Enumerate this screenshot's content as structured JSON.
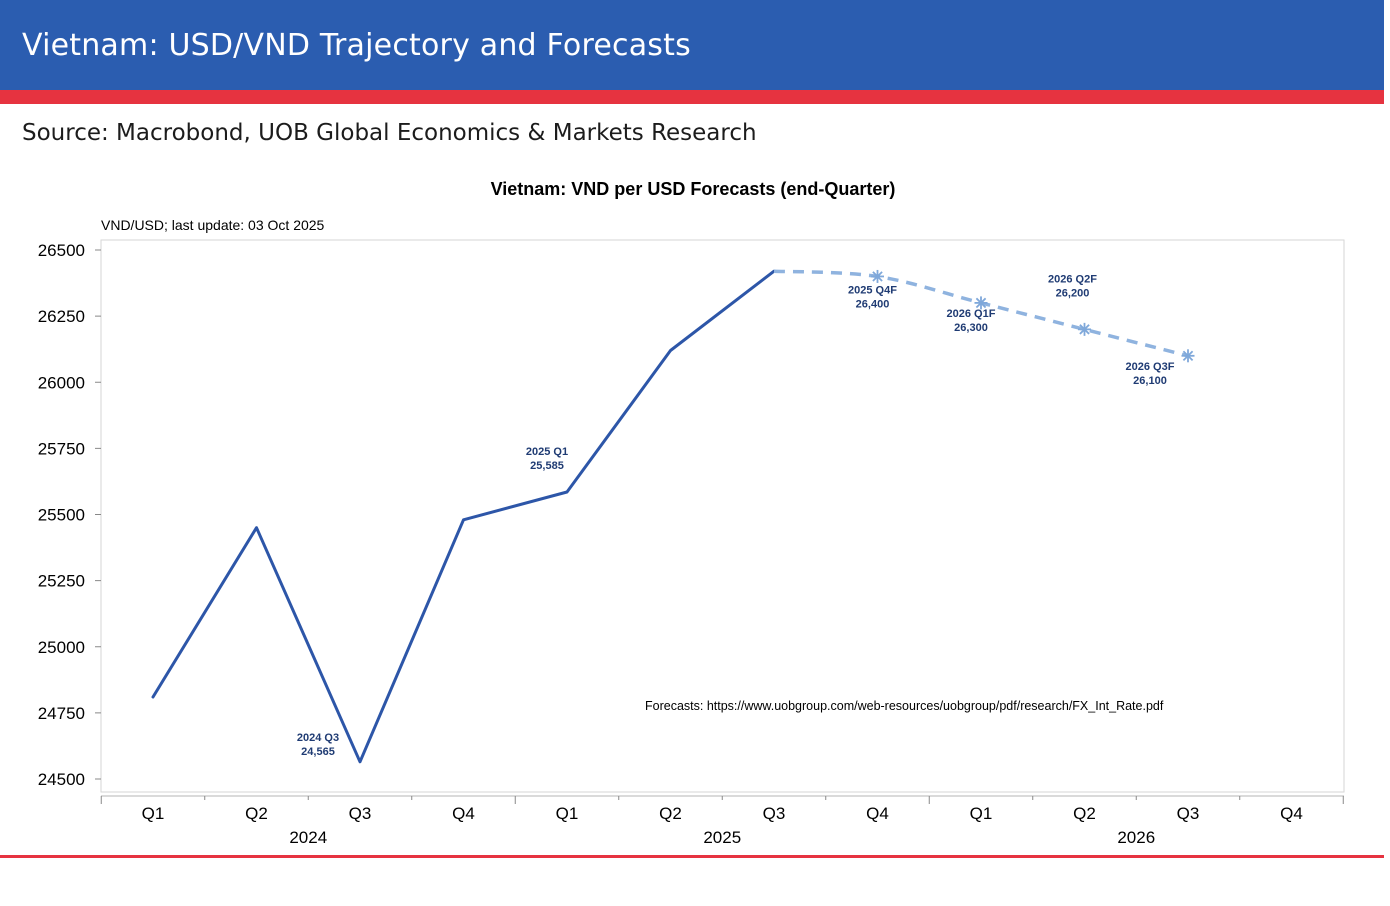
{
  "header": {
    "title": "Vietnam: USD/VND Trajectory and Forecasts",
    "source": "Source: Macrobond, UOB Global Economics & Markets Research"
  },
  "colors": {
    "banner": "#2b5db0",
    "accent_red": "#e63340",
    "actual_line": "#2d56a8",
    "forecast_line": "#8fb3df"
  },
  "chart_data": {
    "type": "line",
    "title": "Vietnam: VND per USD Forecasts (end-Quarter)",
    "unit_note": "VND/USD; last update: 03 Oct 2025",
    "footnote": "Forecasts: https://www.uobgroup.com/web-resources/uobgroup/pdf/research/FX_Int_Rate.pdf",
    "ylim": [
      24500,
      26500
    ],
    "yticks": [
      "26500",
      "26250",
      "26000",
      "25750",
      "25500",
      "25250",
      "25000",
      "24750",
      "24500"
    ],
    "x_quarters": [
      "Q1",
      "Q2",
      "Q3",
      "Q4",
      "Q1",
      "Q2",
      "Q3",
      "Q4",
      "Q1",
      "Q2",
      "Q3",
      "Q4"
    ],
    "x_years": [
      "2024",
      "2025",
      "2026"
    ],
    "grid": false,
    "series": [
      {
        "style": "solid",
        "points": [
          {
            "period": "2024 Q1",
            "value": 24810
          },
          {
            "period": "2024 Q2",
            "value": 25450
          },
          {
            "period": "2024 Q3",
            "value": 24565
          },
          {
            "period": "2024 Q4",
            "value": 25480
          },
          {
            "period": "2025 Q1",
            "value": 25585
          },
          {
            "period": "2025 Q2",
            "value": 26120
          },
          {
            "period": "2025 Q3",
            "value": 26420
          }
        ]
      },
      {
        "style": "dashed",
        "points": [
          {
            "period": "2025 Q3",
            "value": 26420
          },
          {
            "period": "2025 Q4",
            "value": 26400
          },
          {
            "period": "2026 Q1",
            "value": 26300
          },
          {
            "period": "2026 Q2",
            "value": 26200
          },
          {
            "period": "2026 Q3",
            "value": 26100
          }
        ]
      }
    ],
    "annotations": [
      {
        "period": "2024 Q3",
        "line1": "2024 Q3",
        "line2": "24,565"
      },
      {
        "period": "2025 Q1",
        "line1": "2025 Q1",
        "line2": "25,585"
      },
      {
        "period": "2025 Q4",
        "line1": "2025 Q4F",
        "line2": "26,400"
      },
      {
        "period": "2026 Q1",
        "line1": "2026 Q1F",
        "line2": "26,300"
      },
      {
        "period": "2026 Q2",
        "line1": "2026 Q2F",
        "line2": "26,200"
      },
      {
        "period": "2026 Q3",
        "line1": "2026 Q3F",
        "line2": "26,100"
      }
    ]
  }
}
